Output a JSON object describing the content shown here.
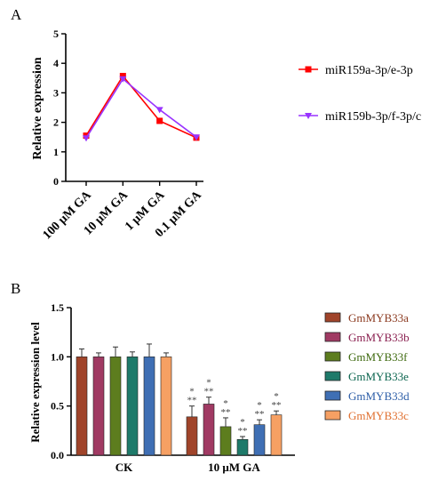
{
  "chart_data": [
    {
      "panel_label": "A",
      "type": "line",
      "categories": [
        "100 μM GA",
        "10 μM GA",
        "1 μM GA",
        "0.1 μM GA"
      ],
      "ylabel": "Relative expression",
      "ylim": [
        0,
        5
      ],
      "yticks": [
        "0",
        "1",
        "2",
        "3",
        "4",
        "5"
      ],
      "grid": false,
      "legend_position": "right",
      "series": [
        {
          "name": "miR159a-3p/e-3p",
          "values": [
            1.55,
            3.57,
            2.05,
            1.48
          ],
          "color": "#ff0000",
          "marker": "square"
        },
        {
          "name": "miR159b-3p/f-3p/c",
          "values": [
            1.47,
            3.47,
            2.43,
            1.5
          ],
          "color": "#9933ff",
          "marker": "triangle-down"
        }
      ]
    },
    {
      "panel_label": "B",
      "type": "bar",
      "categories": [
        "CK",
        "10 μM GA"
      ],
      "ylabel": "Relative expression level",
      "ylim": [
        0,
        1.5
      ],
      "yticks": [
        "0.0",
        "0.5",
        "1.0",
        "1.5"
      ],
      "grid": false,
      "legend_position": "right",
      "significance": [
        [
          "",
          ""
        ],
        [
          "",
          "*\n**"
        ],
        [
          "",
          "*\n**"
        ],
        [
          "",
          "*\n**"
        ],
        [
          "",
          "*\n**"
        ],
        [
          "",
          "*\n**"
        ]
      ],
      "significance_top": "*",
      "significance_bottom": "**",
      "series": [
        {
          "name": "GmMYB33a",
          "values": [
            1.0,
            0.39
          ],
          "errors": [
            0.08,
            0.11
          ],
          "color": "#a0442a",
          "label_color": "#8b3a20"
        },
        {
          "name": "GmMYB33b",
          "values": [
            1.0,
            0.52
          ],
          "errors": [
            0.04,
            0.07
          ],
          "color": "#a03a63",
          "label_color": "#8a2050"
        },
        {
          "name": "GmMYB33f",
          "values": [
            1.0,
            0.29
          ],
          "errors": [
            0.1,
            0.09
          ],
          "color": "#5d7d1e",
          "label_color": "#3f6a10"
        },
        {
          "name": "GmMYB33e",
          "values": [
            1.0,
            0.16
          ],
          "errors": [
            0.05,
            0.03
          ],
          "color": "#1e7a6a",
          "label_color": "#0d6650"
        },
        {
          "name": "GmMYB33d",
          "values": [
            1.0,
            0.31
          ],
          "errors": [
            0.13,
            0.05
          ],
          "color": "#3f6fb4",
          "label_color": "#2e5fa8"
        },
        {
          "name": "GmMYB33c",
          "values": [
            1.0,
            0.41
          ],
          "errors": [
            0.04,
            0.04
          ],
          "color": "#f6a063",
          "label_color": "#e07030"
        }
      ]
    }
  ]
}
